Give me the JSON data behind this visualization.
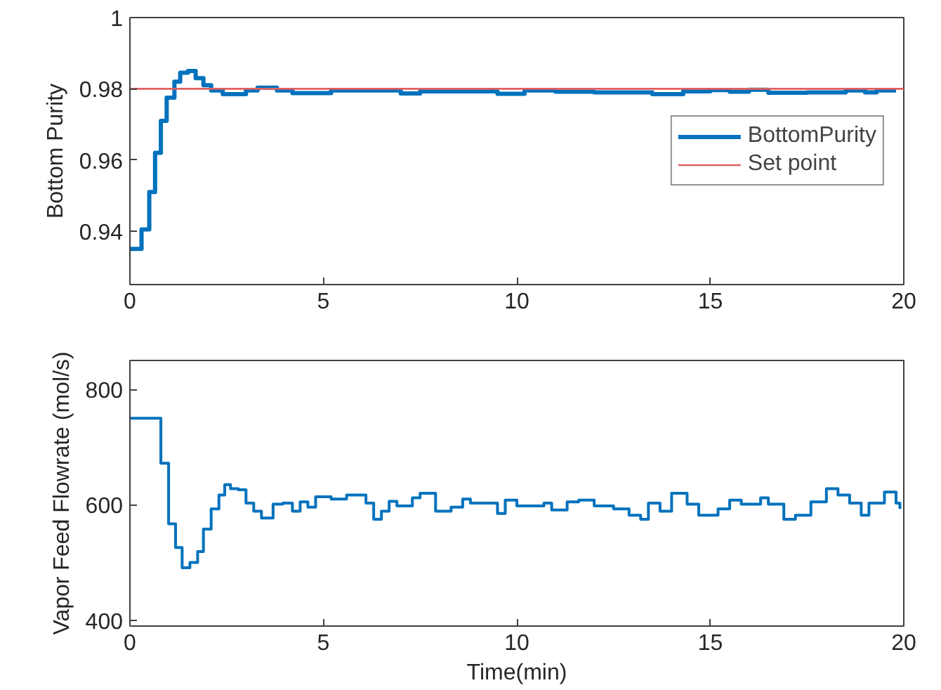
{
  "chart_data": [
    {
      "type": "step",
      "ylabel": "Bottom Purity",
      "xlim": [
        0,
        20
      ],
      "ylim": [
        0.925,
        1
      ],
      "xticks": [
        0,
        5,
        10,
        15,
        20
      ],
      "yticks": [
        0.94,
        0.96,
        0.98,
        1
      ],
      "grid": false,
      "legend": "right",
      "series": [
        {
          "name": "BottomPurity",
          "color": "#0072bd",
          "x": [
            0,
            0.3,
            0.5,
            0.65,
            0.8,
            0.95,
            1.15,
            1.3,
            1.5,
            1.7,
            1.9,
            2.1,
            2.4,
            3.0,
            3.3,
            3.8,
            4.2,
            5.2,
            7,
            7.5,
            9.5,
            10.2,
            11,
            12,
            13.5,
            14.3,
            15,
            15.5,
            16,
            16.5,
            17.5,
            18.5,
            19,
            19.3,
            19.8
          ],
          "values": [
            0.935,
            0.9405,
            0.951,
            0.962,
            0.971,
            0.9775,
            0.982,
            0.9845,
            0.985,
            0.983,
            0.981,
            0.9795,
            0.9785,
            0.9795,
            0.9803,
            0.9795,
            0.9788,
            0.9795,
            0.9787,
            0.9793,
            0.9786,
            0.9795,
            0.9792,
            0.979,
            0.9785,
            0.9793,
            0.9796,
            0.9792,
            0.9797,
            0.9789,
            0.979,
            0.9795,
            0.979,
            0.9795,
            0.9795
          ]
        },
        {
          "name": "Set point",
          "type": "line",
          "color": "#e06060",
          "x": [
            0,
            20
          ],
          "values": [
            0.98,
            0.98
          ]
        }
      ]
    },
    {
      "type": "step",
      "xlabel": "Time(min)",
      "ylabel": "Vapor Feed Flowrate (mol/s)",
      "xlim": [
        0,
        20
      ],
      "ylim": [
        390,
        850
      ],
      "xticks": [
        0,
        5,
        10,
        15,
        20
      ],
      "yticks": [
        400,
        600,
        800
      ],
      "grid": false,
      "series": [
        {
          "color": "#0072bd",
          "x": [
            0,
            0.8,
            1.0,
            1.18,
            1.35,
            1.55,
            1.75,
            1.9,
            2.1,
            2.3,
            2.45,
            2.6,
            2.8,
            3.0,
            3.2,
            3.4,
            3.7,
            3.95,
            4.2,
            4.4,
            4.6,
            4.8,
            5.2,
            5.6,
            6.1,
            6.3,
            6.5,
            6.7,
            6.9,
            7.3,
            7.5,
            7.9,
            8.3,
            8.6,
            8.8,
            9.5,
            9.7,
            10,
            10.5,
            10.7,
            10.9,
            11.3,
            11.6,
            12.0,
            12.5,
            12.9,
            13.2,
            13.4,
            13.7,
            14.0,
            14.4,
            14.7,
            15.2,
            15.5,
            15.8,
            16.3,
            16.5,
            16.9,
            17.2,
            17.6,
            18.0,
            18.3,
            18.6,
            18.9,
            19.1,
            19.5,
            19.8,
            19.9
          ],
          "values": [
            750,
            672,
            567,
            526,
            491,
            500,
            519,
            558,
            593,
            617,
            635,
            628,
            626,
            603,
            589,
            577,
            601,
            603,
            589,
            605,
            596,
            614,
            610,
            617,
            603,
            575,
            589,
            606,
            598,
            612,
            620,
            589,
            596,
            610,
            603,
            585,
            608,
            598,
            598,
            603,
            591,
            605,
            608,
            598,
            593,
            582,
            575,
            603,
            589,
            620,
            601,
            582,
            593,
            608,
            601,
            612,
            601,
            575,
            582,
            605,
            628,
            617,
            603,
            582,
            603,
            622,
            603,
            593
          ]
        }
      ]
    }
  ]
}
